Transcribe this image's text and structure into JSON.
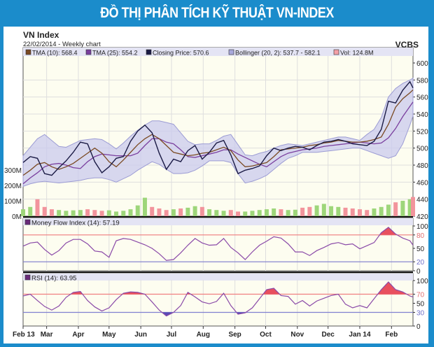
{
  "header": {
    "title": "ĐỒ THỊ PHÂN TÍCH KỸ THUẬT VN-INDEX"
  },
  "chart_data": {
    "type": "line",
    "title": "VN Index",
    "subtitle": "22/02/2014 - Weekly chart",
    "source": "VCBS",
    "xlim": [
      "2013-02-06",
      "2014-02-22"
    ],
    "x_ticks": [
      {
        "date": "2013-02-06",
        "label": "Feb 13"
      },
      {
        "date": "2013-03-01",
        "label": "Mar"
      },
      {
        "date": "2013-04-01",
        "label": "Apr"
      },
      {
        "date": "2013-05-01",
        "label": "May"
      },
      {
        "date": "2013-06-01",
        "label": "Jun"
      },
      {
        "date": "2013-07-01",
        "label": "Jul"
      },
      {
        "date": "2013-08-01",
        "label": "Aug"
      },
      {
        "date": "2013-09-01",
        "label": "Sep"
      },
      {
        "date": "2013-10-01",
        "label": "Oct"
      },
      {
        "date": "2013-11-01",
        "label": "Nov"
      },
      {
        "date": "2013-12-01",
        "label": "Dec"
      },
      {
        "date": "2014-01-01",
        "label": "Jan 14"
      },
      {
        "date": "2014-02-01",
        "label": "Feb"
      }
    ],
    "legend": [
      {
        "label": "TMA (10): 568.4",
        "color": "#7a4a22"
      },
      {
        "label": "TMA (25): 554.2",
        "color": "#7a3f9e"
      },
      {
        "label": "Closing Price: 570.6",
        "color": "#1a1a44"
      },
      {
        "label": "Bollinger (20, 2): 537.7 - 582.1",
        "color": "#a8a8dc"
      },
      {
        "label": "Vol: 124.8M",
        "color": "#f4a0a8"
      }
    ],
    "price_axis": {
      "ylim": [
        420,
        600
      ],
      "ticks": [
        "420",
        "440",
        "460",
        "480",
        "500",
        "520",
        "540",
        "560",
        "580",
        "600"
      ]
    },
    "volume_axis": {
      "ylim_millions": [
        0,
        1000
      ],
      "ticks": [
        "0M",
        "100M",
        "200M",
        "300M"
      ]
    },
    "dates": [
      "2013-02-06",
      "2013-02-13",
      "2013-02-20",
      "2013-02-27",
      "2013-03-06",
      "2013-03-13",
      "2013-03-20",
      "2013-03-27",
      "2013-04-03",
      "2013-04-10",
      "2013-04-17",
      "2013-04-24",
      "2013-05-01",
      "2013-05-08",
      "2013-05-15",
      "2013-05-22",
      "2013-05-29",
      "2013-06-05",
      "2013-06-12",
      "2013-06-19",
      "2013-06-26",
      "2013-07-03",
      "2013-07-10",
      "2013-07-17",
      "2013-07-24",
      "2013-07-31",
      "2013-08-07",
      "2013-08-14",
      "2013-08-21",
      "2013-08-28",
      "2013-09-04",
      "2013-09-11",
      "2013-09-18",
      "2013-09-25",
      "2013-10-02",
      "2013-10-09",
      "2013-10-16",
      "2013-10-23",
      "2013-10-30",
      "2013-11-06",
      "2013-11-13",
      "2013-11-20",
      "2013-11-27",
      "2013-12-04",
      "2013-12-11",
      "2013-12-18",
      "2013-12-25",
      "2014-01-01",
      "2014-01-08",
      "2014-01-15",
      "2014-01-22",
      "2014-01-29",
      "2014-02-05",
      "2014-02-12",
      "2014-02-19",
      "2014-02-22"
    ],
    "series": [
      {
        "name": "Closing Price",
        "color": "#1a1a44",
        "values": [
          483,
          490,
          488,
          470,
          468,
          477,
          485,
          495,
          507,
          505,
          484,
          471,
          478,
          488,
          490,
          508,
          520,
          527,
          518,
          494,
          475,
          487,
          484,
          497,
          503,
          487,
          495,
          506,
          509,
          492,
          470,
          474,
          476,
          479,
          491,
          500,
          497,
          500,
          502,
          501,
          498,
          503,
          507,
          508,
          510,
          508,
          505,
          504,
          503,
          508,
          522,
          555,
          553,
          568,
          578,
          570.6
        ]
      },
      {
        "name": "TMA (10)",
        "color": "#7a4a22",
        "values": [
          468,
          474,
          481,
          483,
          478,
          475,
          478,
          482,
          488,
          494,
          500,
          494,
          484,
          478,
          486,
          495,
          504,
          511,
          516,
          511,
          503,
          495,
          493,
          491,
          492,
          494,
          495,
          498,
          501,
          497,
          486,
          478,
          479,
          481,
          483,
          490,
          498,
          499,
          500,
          501,
          503,
          504,
          506,
          507,
          509,
          508,
          507,
          507,
          508,
          510,
          513,
          528,
          548,
          558,
          565,
          568.4
        ]
      },
      {
        "name": "TMA (25)",
        "color": "#7a3f9e",
        "values": [
          458,
          465,
          471,
          478,
          481,
          482,
          480,
          477,
          476,
          484,
          490,
          493,
          492,
          491,
          491,
          491,
          494,
          503,
          511,
          511,
          507,
          505,
          498,
          490,
          489,
          491,
          493,
          495,
          498,
          498,
          493,
          489,
          485,
          481,
          478,
          484,
          490,
          494,
          496,
          498,
          499,
          500,
          502,
          503,
          504,
          505,
          506,
          507,
          506,
          505,
          506,
          512,
          523,
          537,
          549,
          554.2
        ]
      },
      {
        "name": "Bollinger upper",
        "values": [
          491,
          501,
          511,
          516,
          509,
          502,
          501,
          505,
          509,
          510,
          511,
          510,
          505,
          499,
          506,
          514,
          521,
          527,
          532,
          532,
          530,
          528,
          518,
          508,
          504,
          505,
          505,
          509,
          514,
          516,
          504,
          492,
          491,
          494,
          496,
          500,
          503,
          505,
          504,
          503,
          505,
          507,
          509,
          511,
          513,
          513,
          511,
          509,
          516,
          522,
          536,
          560,
          570,
          576,
          580,
          582.1
        ]
      },
      {
        "name": "Bollinger lower",
        "values": [
          455,
          458,
          460,
          461,
          460,
          459,
          460,
          461,
          462,
          464,
          465,
          465,
          463,
          460,
          464,
          468,
          474,
          479,
          484,
          481,
          475,
          470,
          470,
          471,
          474,
          479,
          485,
          485,
          485,
          483,
          470,
          459,
          461,
          464,
          468,
          475,
          482,
          488,
          491,
          495,
          495,
          495,
          496,
          497,
          498,
          499,
          500,
          500,
          497,
          494,
          491,
          488,
          491,
          505,
          527,
          537.7
        ]
      }
    ],
    "volume_millions": [
      45,
      60,
      110,
      60,
      45,
      40,
      35,
      38,
      40,
      45,
      40,
      35,
      38,
      30,
      35,
      45,
      70,
      120,
      60,
      50,
      40,
      45,
      50,
      55,
      65,
      60,
      45,
      40,
      35,
      40,
      30,
      30,
      35,
      40,
      45,
      50,
      45,
      40,
      42,
      55,
      60,
      70,
      80,
      65,
      60,
      55,
      50,
      45,
      40,
      50,
      60,
      75,
      90,
      100,
      110,
      124.8
    ],
    "volume_colors": {
      "up": "#9ed67a",
      "down": "#f2949c"
    },
    "mfi": {
      "label": "Money Flow Index (14): 57.19",
      "ylim": [
        0,
        100
      ],
      "overbought": 80,
      "oversold": 20,
      "ticks": [
        "0",
        "20",
        "50",
        "80",
        "100"
      ],
      "values": [
        55,
        62,
        64,
        47.5,
        35,
        45,
        62,
        70,
        70,
        60,
        44,
        42,
        30,
        67,
        72,
        70,
        64,
        58,
        50,
        38,
        23,
        25,
        40,
        57,
        72,
        62,
        57,
        58,
        72,
        52,
        40,
        25,
        42,
        57,
        66,
        76,
        73,
        60,
        42,
        42,
        34,
        45,
        52,
        60,
        63,
        58,
        60,
        49,
        56,
        63,
        85,
        97,
        82,
        73,
        67,
        57.19
      ]
    },
    "rsi": {
      "label": "RSI (14): 63.95",
      "ylim": [
        0,
        100
      ],
      "overbought": 70,
      "oversold": 30,
      "ticks": [
        "0",
        "30",
        "50",
        "70",
        "100"
      ],
      "values": [
        66,
        70,
        56,
        43,
        35,
        44,
        63,
        74,
        76,
        56,
        42,
        33,
        40,
        58,
        72,
        75,
        74,
        70,
        53,
        35,
        22,
        30,
        45,
        74,
        64,
        53,
        49,
        54,
        72,
        45,
        26,
        29,
        40,
        60,
        80,
        83,
        67,
        65,
        48,
        56,
        44,
        55,
        61,
        67,
        70,
        48,
        40,
        45,
        40,
        60,
        80,
        97,
        80,
        75,
        66,
        63.95
      ]
    },
    "colors": {
      "band_fill": "#c9c9ee",
      "band_stroke": "#9c9cd4",
      "plot_bg": "#fdfdf0",
      "header_bg": "#e4e4f4",
      "overbought_fill": "#e8505e",
      "oversold_fill": "#5a4ab4",
      "oscillator_line": "#8a4aa8",
      "overbought_line": "#f08080",
      "oversold_line": "#8080d0"
    },
    "grid": true
  }
}
